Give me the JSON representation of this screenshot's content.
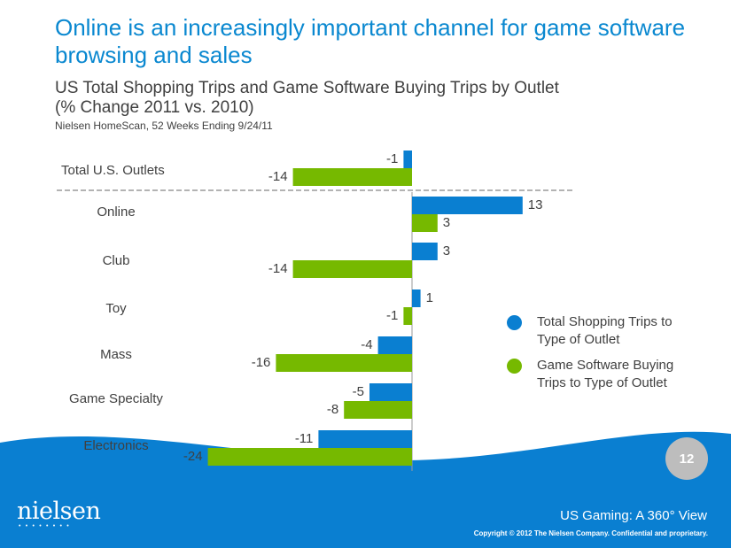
{
  "slide": {
    "title": "Online is an increasingly important channel for game software browsing and sales",
    "subtitle": "US Total Shopping Trips and Game Software Buying Trips by Outlet",
    "subtitle2": "(% Change 2011 vs. 2010)",
    "source": "Nielsen HomeScan, 52 Weeks Ending 9/24/11",
    "page_number": "12",
    "logo": "nielsen",
    "logo_dots": "••••••••",
    "tagline": "US Gaming: A 360° View",
    "copyright": "Copyright © 2012 The Nielsen Company. Confidential and proprietary."
  },
  "colors": {
    "title": "#0a88d0",
    "total_trips": "#0a7fd1",
    "game_trips": "#76b900",
    "footer": "#0a7fd1"
  },
  "legend": {
    "total_label": "Total Shopping Trips to Type of Outlet",
    "game_label": "Game Software Buying Trips to Type of Outlet"
  },
  "chart_data": {
    "type": "bar",
    "orientation": "horizontal",
    "title": "US Total Shopping Trips and Game Software Buying Trips by Outlet",
    "xlabel": "% Change 2011 vs. 2010",
    "ylabel": "",
    "xlim": [
      -24,
      13
    ],
    "categories": [
      "Total U.S. Outlets",
      "Online",
      "Club",
      "Toy",
      "Mass",
      "Game Specialty",
      "Electronics"
    ],
    "series": [
      {
        "name": "Total Shopping Trips to Type of Outlet",
        "values": [
          -1,
          13,
          3,
          1,
          -4,
          -5,
          -11
        ]
      },
      {
        "name": "Game Software Buying Trips to Type of Outlet",
        "values": [
          -14,
          3,
          -14,
          -1,
          -16,
          -8,
          -24
        ]
      }
    ],
    "legend_position": "right"
  }
}
